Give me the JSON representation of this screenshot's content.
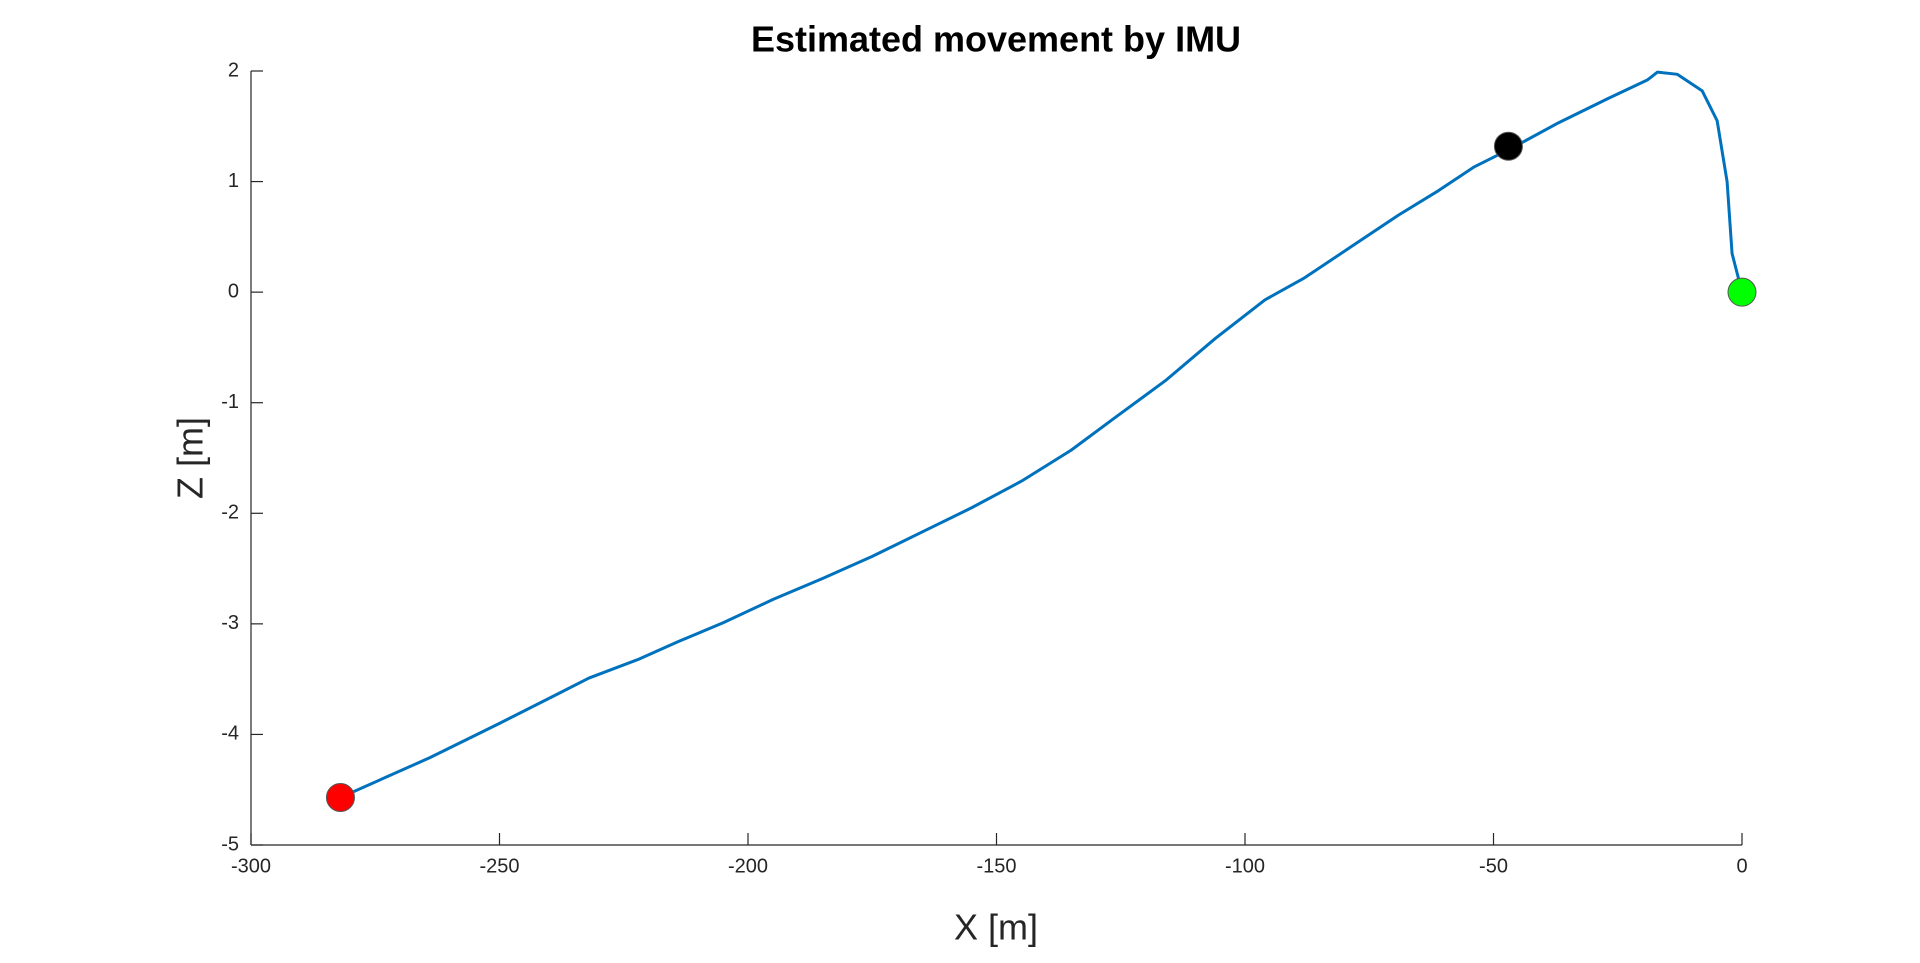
{
  "chart_data": {
    "type": "line",
    "title": "Estimated movement by IMU",
    "x_label": "X [m]",
    "y_label": "Z [m]",
    "xlim": [
      -300,
      0
    ],
    "ylim": [
      -5,
      2
    ],
    "xticks": [
      -300,
      -250,
      -200,
      -150,
      -100,
      -50,
      0
    ],
    "yticks": [
      -5,
      -4,
      -3,
      -2,
      -1,
      0,
      1,
      2
    ],
    "grid": false,
    "series": [
      {
        "color": "#0072bd",
        "x": [
          -282,
          -264,
          -250,
          -239,
          -232,
          -222,
          -214,
          -205,
          -195,
          -185,
          -175,
          -165,
          -155,
          -145,
          -135,
          -126,
          -116,
          -106,
          -96,
          -88,
          -79,
          -69,
          -61,
          -54,
          -46,
          -37,
          -27,
          -19,
          -17,
          -13,
          -8,
          -5,
          -3,
          -2,
          0
        ],
        "values": [
          -4.57,
          -4.21,
          -3.9,
          -3.65,
          -3.49,
          -3.32,
          -3.16,
          -2.99,
          -2.78,
          -2.59,
          -2.39,
          -2.17,
          -1.95,
          -1.71,
          -1.43,
          -1.13,
          -0.8,
          -0.42,
          -0.07,
          0.13,
          0.4,
          0.7,
          0.92,
          1.13,
          1.31,
          1.53,
          1.75,
          1.92,
          1.99,
          1.97,
          1.82,
          1.55,
          1.0,
          0.35,
          0
        ]
      }
    ],
    "markers": [
      {
        "color": "#00ff00",
        "x": 0,
        "y": 0
      },
      {
        "color": "#000000",
        "x": -47,
        "y": 1.32
      },
      {
        "color": "#ff0000",
        "x": -282,
        "y": -4.57
      }
    ]
  }
}
